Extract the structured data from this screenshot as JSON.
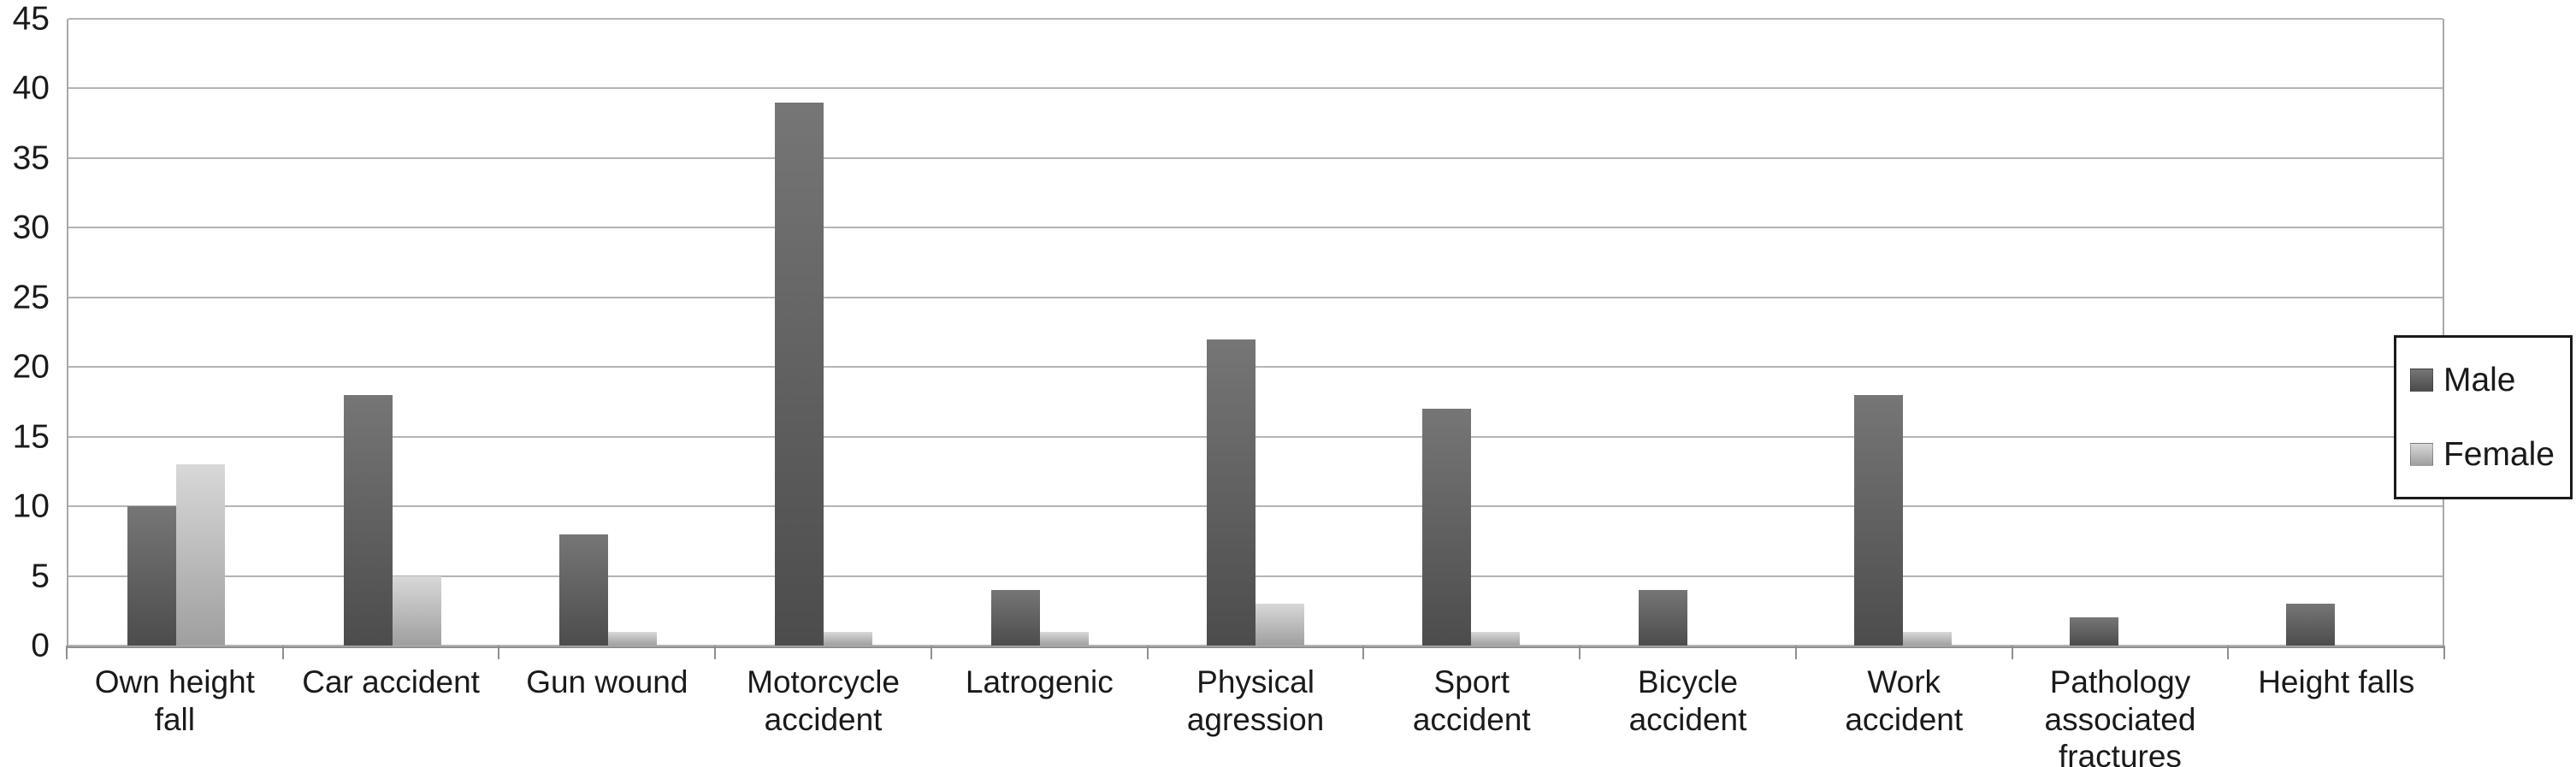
{
  "chart_data": {
    "type": "bar",
    "title": "",
    "xlabel": "",
    "ylabel": "",
    "ylim": [
      0,
      45
    ],
    "y_ticks": [
      0,
      5,
      10,
      15,
      20,
      25,
      30,
      35,
      40,
      45
    ],
    "grid": "horizontal",
    "legend_position": "right-outside",
    "categories": [
      "Own height fall",
      "Car accident",
      "Gun wound",
      "Motorcycle accident",
      "Latrogenic",
      "Physical agression",
      "Sport accident",
      "Bicycle accident",
      "Work accident",
      "Pathology associated fractures",
      "Height falls"
    ],
    "series": [
      {
        "name": "Male",
        "color": "#595959",
        "color_gradient": [
          "#767676",
          "#4c4c4c"
        ],
        "values": [
          10,
          18,
          8,
          39,
          4,
          22,
          17,
          4,
          18,
          2,
          3
        ]
      },
      {
        "name": "Female",
        "color": "#bfbfbf",
        "color_gradient": [
          "#d8d8d8",
          "#9f9f9f"
        ],
        "values": [
          13,
          5,
          1,
          1,
          1,
          3,
          1,
          0,
          1,
          0,
          0
        ]
      }
    ]
  },
  "legend": {
    "items": [
      {
        "label": "Male"
      },
      {
        "label": "Female"
      }
    ]
  },
  "colors": {
    "gridline": "#b4b4b4",
    "axis": "#8f8f8f",
    "text": "#1a1a1a",
    "background": "#ffffff"
  }
}
